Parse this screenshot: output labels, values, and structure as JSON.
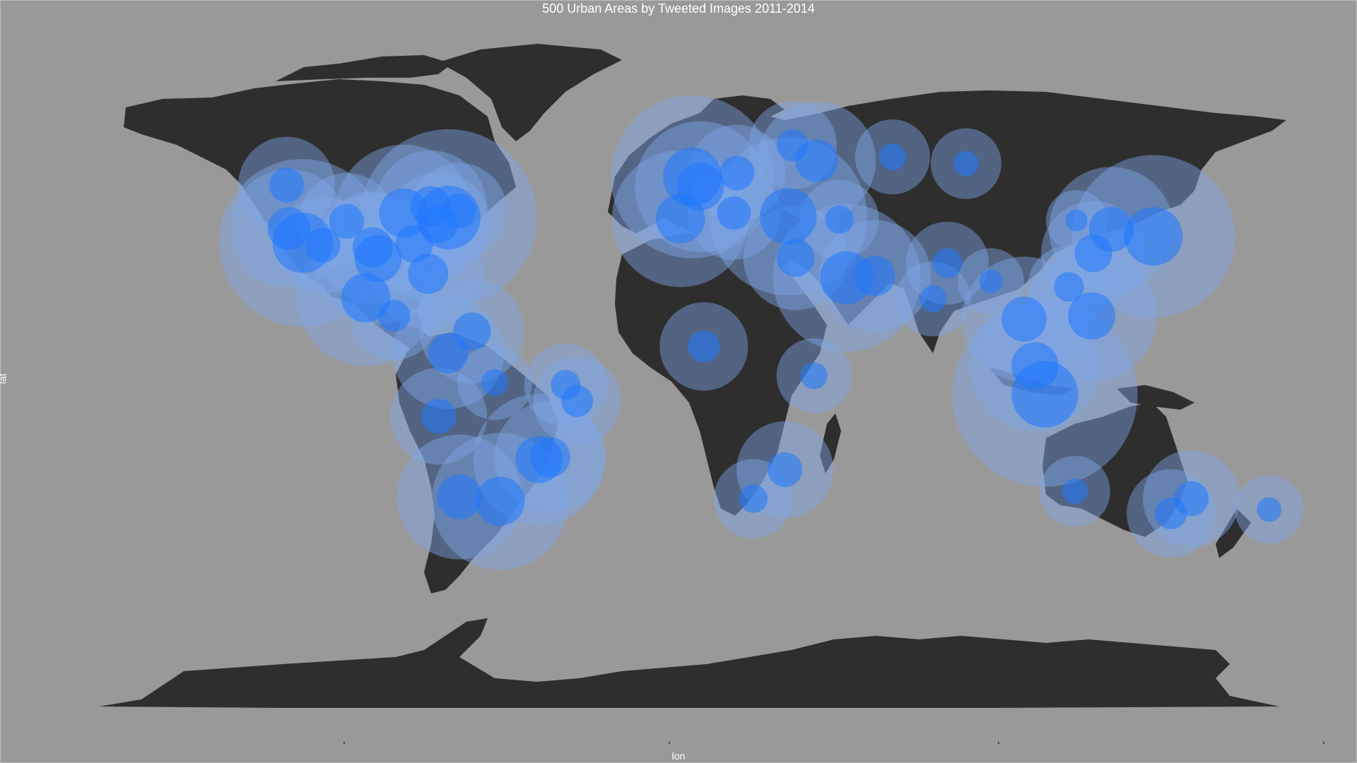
{
  "chart_data": {
    "type": "bubble-map",
    "title": "500 Urban Areas by Tweeted Images 2011-2014",
    "xlabel": "lon",
    "ylabel": "lat",
    "grid": false,
    "legend": "none",
    "colors": {
      "background": "#999999",
      "land": "#2e2e2e",
      "bubble_fill": "#1f78ff",
      "bubble_halo": "#7fa6e6",
      "text": "#ffffff"
    },
    "bubbles": [
      {
        "lon": -74.0,
        "lat": 40.7,
        "size": 100
      },
      {
        "lon": -118.2,
        "lat": 34.0,
        "size": 90
      },
      {
        "lon": -87.6,
        "lat": 41.9,
        "size": 60
      },
      {
        "lon": -95.4,
        "lat": 29.8,
        "size": 55
      },
      {
        "lon": -99.1,
        "lat": 19.4,
        "size": 60
      },
      {
        "lon": -122.4,
        "lat": 37.8,
        "size": 45
      },
      {
        "lon": -80.2,
        "lat": 25.8,
        "size": 40
      },
      {
        "lon": -79.4,
        "lat": 43.7,
        "size": 40
      },
      {
        "lon": -84.4,
        "lat": 33.7,
        "size": 35
      },
      {
        "lon": -0.1,
        "lat": 51.5,
        "size": 85
      },
      {
        "lon": 2.35,
        "lat": 48.9,
        "size": 55
      },
      {
        "lon": -3.7,
        "lat": 40.4,
        "size": 60
      },
      {
        "lon": 28.97,
        "lat": 41.0,
        "size": 80
      },
      {
        "lon": 37.6,
        "lat": 55.75,
        "size": 45
      },
      {
        "lon": 46.7,
        "lat": 24.7,
        "size": 70
      },
      {
        "lon": 55.3,
        "lat": 25.2,
        "size": 40
      },
      {
        "lon": 31.2,
        "lat": 30.0,
        "size": 35
      },
      {
        "lon": 139.7,
        "lat": 35.7,
        "size": 85
      },
      {
        "lon": 126.98,
        "lat": 37.57,
        "size": 50
      },
      {
        "lon": 121.5,
        "lat": 31.2,
        "size": 35
      },
      {
        "lon": 106.8,
        "lat": -6.2,
        "size": 110
      },
      {
        "lon": 100.5,
        "lat": 13.75,
        "size": 50
      },
      {
        "lon": 103.8,
        "lat": 1.35,
        "size": 55
      },
      {
        "lon": 121.0,
        "lat": 14.6,
        "size": 55
      },
      {
        "lon": -46.6,
        "lat": -23.5,
        "size": 55
      },
      {
        "lon": -58.4,
        "lat": -34.6,
        "size": 60
      },
      {
        "lon": -43.2,
        "lat": -22.9,
        "size": 40
      },
      {
        "lon": -70.65,
        "lat": -33.45,
        "size": 50
      },
      {
        "lon": -77.0,
        "lat": -12.05,
        "size": 30
      },
      {
        "lon": -74.1,
        "lat": 4.7,
        "size": 40
      },
      {
        "lon": -66.9,
        "lat": 10.5,
        "size": 35
      },
      {
        "lon": 151.2,
        "lat": -33.9,
        "size": 30
      },
      {
        "lon": 145.0,
        "lat": -37.8,
        "size": 25
      },
      {
        "lon": 28.0,
        "lat": -26.2,
        "size": 30
      },
      {
        "lon": 18.4,
        "lat": -33.9,
        "size": 20
      },
      {
        "lon": 3.4,
        "lat": 6.5,
        "size": 25
      },
      {
        "lon": 36.8,
        "lat": -1.3,
        "size": 18
      },
      {
        "lon": 77.2,
        "lat": 28.6,
        "size": 22
      },
      {
        "lon": 72.9,
        "lat": 19.1,
        "size": 18
      },
      {
        "lon": 174.8,
        "lat": -36.8,
        "size": 15
      },
      {
        "lon": 115.9,
        "lat": -31.95,
        "size": 16
      },
      {
        "lon": 30.3,
        "lat": 59.9,
        "size": 25
      },
      {
        "lon": 13.4,
        "lat": 52.5,
        "size": 30
      },
      {
        "lon": 12.5,
        "lat": 41.9,
        "size": 28
      },
      {
        "lon": 44.5,
        "lat": 40.2,
        "size": 20
      },
      {
        "lon": 60.6,
        "lat": 56.8,
        "size": 18
      },
      {
        "lon": 82.9,
        "lat": 55.0,
        "size": 16
      },
      {
        "lon": 116.4,
        "lat": 39.9,
        "size": 12
      },
      {
        "lon": 114.1,
        "lat": 22.3,
        "size": 22
      },
      {
        "lon": 90.4,
        "lat": 23.8,
        "size": 14
      },
      {
        "lon": -90.5,
        "lat": 14.6,
        "size": 25
      },
      {
        "lon": -71.0,
        "lat": 42.4,
        "size": 30
      },
      {
        "lon": -77.0,
        "lat": 38.9,
        "size": 35
      },
      {
        "lon": -104.9,
        "lat": 39.7,
        "size": 30
      },
      {
        "lon": -112.1,
        "lat": 33.4,
        "size": 30
      },
      {
        "lon": -97.0,
        "lat": 32.8,
        "size": 40
      },
      {
        "lon": -123.1,
        "lat": 49.3,
        "size": 30
      },
      {
        "lon": -35.0,
        "lat": -8.0,
        "size": 25
      },
      {
        "lon": -38.5,
        "lat": -3.7,
        "size": 22
      },
      {
        "lon": -60.0,
        "lat": -3.1,
        "size": 18
      }
    ]
  }
}
